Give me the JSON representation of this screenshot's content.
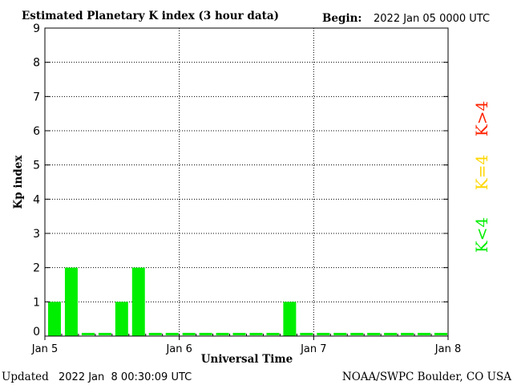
{
  "header": {
    "title": "Estimated Planetary K index (3 hour data)",
    "begin_label": "Begin:",
    "begin_value": "2022 Jan 05 0000 UTC"
  },
  "footer": {
    "updated_label": "Updated",
    "updated_value": "2022 Jan  8 00:30:09 UTC",
    "source": "NOAA/SWPC Boulder, CO USA"
  },
  "legend": {
    "above": "K>4",
    "equal": "K=4",
    "below": "K<4"
  },
  "colors": {
    "below": "#00ee00",
    "equal": "#ffd700",
    "above": "#ff2200",
    "frame": "#000000",
    "grid": "#000000",
    "background": "#ffffff"
  },
  "chart_data": {
    "type": "bar",
    "title": "Estimated Planetary K index (3 hour data)",
    "xlabel": "Universal Time",
    "ylabel": "Kp index",
    "ylim": [
      0,
      9
    ],
    "yticks": [
      0,
      1,
      2,
      3,
      4,
      5,
      6,
      7,
      8,
      9
    ],
    "x_tick_labels": [
      "Jan 5",
      "Jan 6",
      "Jan 7",
      "Jan 8"
    ],
    "grid": true,
    "interval_hours": 3,
    "values": [
      1,
      2,
      0,
      0,
      1,
      2,
      0,
      0,
      0,
      0,
      0,
      0,
      0,
      0,
      1,
      0,
      0,
      0,
      0,
      0,
      0,
      0,
      0,
      0
    ]
  }
}
